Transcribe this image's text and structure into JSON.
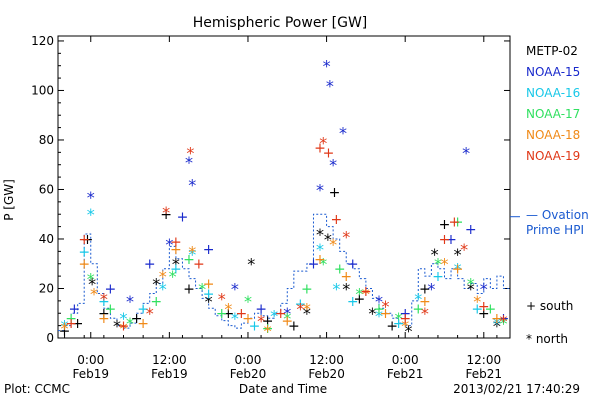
{
  "chart_data": {
    "type": "scatter",
    "title": "Hemispheric Power [GW]",
    "ylabel": "P [GW]",
    "xlabel": "Date and Time",
    "ylim": [
      0,
      122
    ],
    "yticks": [
      0,
      20,
      40,
      60,
      80,
      100,
      120
    ],
    "xlim_hours": [
      -5,
      64
    ],
    "xticks": [
      {
        "h": 0,
        "time": "0:00",
        "date": "Feb19"
      },
      {
        "h": 12,
        "time": "12:00",
        "date": "Feb19"
      },
      {
        "h": 24,
        "time": "0:00",
        "date": "Feb20"
      },
      {
        "h": 36,
        "time": "12:00",
        "date": "Feb20"
      },
      {
        "h": 48,
        "time": "0:00",
        "date": "Feb21"
      },
      {
        "h": 60,
        "time": "12:00",
        "date": "Feb21"
      }
    ],
    "footer_left": "Plot: CCMC",
    "footer_right": "2013/02/21 17:40:29",
    "markers_legend": {
      "south": "+ south",
      "north": "* north"
    },
    "series": [
      {
        "name": "METP-02",
        "color": "#000000",
        "points": [
          [
            -4,
            3,
            "+"
          ],
          [
            -2,
            6,
            "+"
          ],
          [
            -0.5,
            40,
            "+"
          ],
          [
            0.2,
            22,
            "*"
          ],
          [
            2,
            10,
            "+"
          ],
          [
            4,
            5,
            "*"
          ],
          [
            7,
            8,
            "+"
          ],
          [
            10,
            22,
            "*"
          ],
          [
            11.5,
            50,
            "+"
          ],
          [
            13,
            30,
            "*"
          ],
          [
            15,
            20,
            "+"
          ],
          [
            18,
            15,
            "*"
          ],
          [
            21,
            10,
            "+"
          ],
          [
            24.5,
            30,
            "*"
          ],
          [
            27,
            7,
            "+"
          ],
          [
            31,
            5,
            "+"
          ],
          [
            33,
            10,
            "*"
          ],
          [
            35,
            42,
            "*"
          ],
          [
            36.2,
            40,
            "*"
          ],
          [
            37.2,
            59,
            "+"
          ],
          [
            39,
            20,
            "*"
          ],
          [
            41,
            16,
            "+"
          ],
          [
            43,
            10,
            "*"
          ],
          [
            46,
            5,
            "+"
          ],
          [
            48.5,
            3,
            "*"
          ],
          [
            51,
            20,
            "+"
          ],
          [
            52.5,
            34,
            "*"
          ],
          [
            54,
            46,
            "+"
          ],
          [
            56,
            34,
            "*"
          ],
          [
            58,
            20,
            "*"
          ],
          [
            60,
            10,
            "+"
          ],
          [
            62,
            5,
            "*"
          ]
        ]
      },
      {
        "name": "NOAA-15",
        "color": "#1a2acc",
        "points": [
          [
            -2.5,
            12,
            "+"
          ],
          [
            0,
            57,
            "*"
          ],
          [
            3,
            20,
            "+"
          ],
          [
            6,
            15,
            "*"
          ],
          [
            9,
            30,
            "+"
          ],
          [
            12,
            38,
            "*"
          ],
          [
            14,
            49,
            "+"
          ],
          [
            15,
            71,
            "*"
          ],
          [
            15.5,
            62,
            "*"
          ],
          [
            18,
            36,
            "+"
          ],
          [
            22,
            20,
            "*"
          ],
          [
            26,
            12,
            "+"
          ],
          [
            30,
            10,
            "*"
          ],
          [
            34,
            30,
            "+"
          ],
          [
            35,
            60,
            "*"
          ],
          [
            36,
            110,
            "*"
          ],
          [
            36.5,
            102,
            "*"
          ],
          [
            37,
            70,
            "*"
          ],
          [
            38.5,
            83,
            "*"
          ],
          [
            40,
            30,
            "+"
          ],
          [
            44,
            15,
            "*"
          ],
          [
            48,
            10,
            "+"
          ],
          [
            52,
            20,
            "*"
          ],
          [
            55,
            40,
            "+"
          ],
          [
            57.3,
            75,
            "*"
          ],
          [
            58,
            44,
            "+"
          ],
          [
            60,
            20,
            "*"
          ],
          [
            63,
            8,
            "+"
          ]
        ]
      },
      {
        "name": "NOAA-16",
        "color": "#18c8e8",
        "points": [
          [
            -4,
            5,
            "*"
          ],
          [
            -1,
            35,
            "+"
          ],
          [
            0,
            50,
            "*"
          ],
          [
            2,
            15,
            "+"
          ],
          [
            5,
            8,
            "*"
          ],
          [
            8,
            12,
            "+"
          ],
          [
            11,
            20,
            "*"
          ],
          [
            13,
            28,
            "+"
          ],
          [
            15.5,
            34,
            "*"
          ],
          [
            18,
            18,
            "+"
          ],
          [
            22,
            8,
            "*"
          ],
          [
            25,
            5,
            "+"
          ],
          [
            28,
            9,
            "*"
          ],
          [
            32,
            14,
            "+"
          ],
          [
            35,
            36,
            "*"
          ],
          [
            37.5,
            20,
            "*"
          ],
          [
            40,
            15,
            "+"
          ],
          [
            44,
            9,
            "*"
          ],
          [
            47,
            6,
            "+"
          ],
          [
            50,
            16,
            "*"
          ],
          [
            53,
            25,
            "+"
          ],
          [
            56,
            28,
            "*"
          ],
          [
            59,
            12,
            "+"
          ],
          [
            62,
            6,
            "*"
          ]
        ]
      },
      {
        "name": "NOAA-17",
        "color": "#30e060",
        "points": [
          [
            -3,
            8,
            "+"
          ],
          [
            0,
            24,
            "*"
          ],
          [
            3,
            12,
            "+"
          ],
          [
            6,
            6,
            "*"
          ],
          [
            10,
            15,
            "+"
          ],
          [
            12.5,
            25,
            "*"
          ],
          [
            15,
            32,
            "+"
          ],
          [
            17,
            20,
            "*"
          ],
          [
            20,
            10,
            "+"
          ],
          [
            24,
            15,
            "*"
          ],
          [
            27,
            4,
            "+"
          ],
          [
            30,
            8,
            "*"
          ],
          [
            33,
            20,
            "+"
          ],
          [
            35.5,
            30,
            "*"
          ],
          [
            38,
            28,
            "+"
          ],
          [
            41,
            18,
            "*"
          ],
          [
            44,
            12,
            "+"
          ],
          [
            47,
            8,
            "*"
          ],
          [
            50,
            12,
            "+"
          ],
          [
            53,
            30,
            "*"
          ],
          [
            56,
            47,
            "+"
          ],
          [
            58,
            22,
            "*"
          ],
          [
            61,
            12,
            "+"
          ],
          [
            63,
            6,
            "*"
          ]
        ]
      },
      {
        "name": "NOAA-18",
        "color": "#f08a18",
        "points": [
          [
            -4,
            4,
            "*"
          ],
          [
            -1,
            30,
            "+"
          ],
          [
            0.5,
            18,
            "*"
          ],
          [
            2,
            8,
            "+"
          ],
          [
            5,
            4,
            "*"
          ],
          [
            8,
            6,
            "+"
          ],
          [
            11,
            25,
            "*"
          ],
          [
            13,
            36,
            "+"
          ],
          [
            15.5,
            35,
            "*"
          ],
          [
            18,
            22,
            "+"
          ],
          [
            21,
            12,
            "*"
          ],
          [
            24,
            8,
            "+"
          ],
          [
            27,
            3,
            "*"
          ],
          [
            30,
            7,
            "+"
          ],
          [
            33,
            12,
            "*"
          ],
          [
            35,
            32,
            "+"
          ],
          [
            37,
            38,
            "*"
          ],
          [
            39,
            25,
            "+"
          ],
          [
            42,
            18,
            "*"
          ],
          [
            45,
            10,
            "+"
          ],
          [
            48,
            5,
            "*"
          ],
          [
            51,
            15,
            "+"
          ],
          [
            54,
            30,
            "*"
          ],
          [
            56,
            28,
            "+"
          ],
          [
            59,
            15,
            "*"
          ],
          [
            62,
            8,
            "+"
          ]
        ]
      },
      {
        "name": "NOAA-19",
        "color": "#e03818",
        "points": [
          [
            -3,
            6,
            "+"
          ],
          [
            -1,
            40,
            "+"
          ],
          [
            2,
            16,
            "*"
          ],
          [
            5,
            5,
            "+"
          ],
          [
            9,
            10,
            "*"
          ],
          [
            11.5,
            51,
            "*"
          ],
          [
            13,
            39,
            "+"
          ],
          [
            15.2,
            75,
            "*"
          ],
          [
            16.5,
            30,
            "+"
          ],
          [
            20,
            16,
            "*"
          ],
          [
            23,
            10,
            "+"
          ],
          [
            26,
            7,
            "*"
          ],
          [
            29,
            10,
            "+"
          ],
          [
            32,
            12,
            "*"
          ],
          [
            35,
            77,
            "+"
          ],
          [
            35.5,
            79,
            "*"
          ],
          [
            36.3,
            75,
            "+"
          ],
          [
            37.5,
            48,
            "+"
          ],
          [
            39,
            41,
            "*"
          ],
          [
            42,
            19,
            "+"
          ],
          [
            45,
            13,
            "*"
          ],
          [
            48,
            8,
            "+"
          ],
          [
            51,
            10,
            "*"
          ],
          [
            54,
            40,
            "+"
          ],
          [
            55.5,
            47,
            "+"
          ],
          [
            57,
            36,
            "*"
          ],
          [
            60,
            13,
            "+"
          ],
          [
            63,
            7,
            "*"
          ]
        ]
      }
    ],
    "ovation": {
      "name": "— Ovation Prime HPI",
      "label_line1": "— Ovation",
      "label_line2": "Prime HPI",
      "color": "#1a5ad0",
      "steps": [
        [
          -5,
          3
        ],
        [
          -4,
          5
        ],
        [
          -3,
          10
        ],
        [
          -2,
          14
        ],
        [
          -1,
          42
        ],
        [
          0,
          30
        ],
        [
          1,
          18
        ],
        [
          2,
          12
        ],
        [
          3,
          8
        ],
        [
          4,
          5
        ],
        [
          5,
          4
        ],
        [
          6,
          6
        ],
        [
          7,
          10
        ],
        [
          8,
          14
        ],
        [
          9,
          18
        ],
        [
          10,
          22
        ],
        [
          11,
          28
        ],
        [
          12,
          37
        ],
        [
          13,
          32
        ],
        [
          14,
          28
        ],
        [
          15,
          24
        ],
        [
          16,
          20
        ],
        [
          17,
          16
        ],
        [
          18,
          12
        ],
        [
          19,
          9
        ],
        [
          20,
          7
        ],
        [
          21,
          5
        ],
        [
          22,
          4
        ],
        [
          23,
          6
        ],
        [
          24,
          8
        ],
        [
          25,
          10
        ],
        [
          26,
          9
        ],
        [
          27,
          8
        ],
        [
          28,
          10
        ],
        [
          29,
          14
        ],
        [
          30,
          20
        ],
        [
          31,
          27
        ],
        [
          32,
          27
        ],
        [
          33,
          30
        ],
        [
          34,
          50
        ],
        [
          35,
          50
        ],
        [
          36,
          45
        ],
        [
          37,
          40
        ],
        [
          38,
          35
        ],
        [
          39,
          30
        ],
        [
          40,
          28
        ],
        [
          41,
          24
        ],
        [
          42,
          20
        ],
        [
          43,
          16
        ],
        [
          44,
          12
        ],
        [
          45,
          10
        ],
        [
          46,
          8
        ],
        [
          47,
          6
        ],
        [
          48,
          5
        ],
        [
          49,
          15
        ],
        [
          50,
          28
        ],
        [
          51,
          25
        ],
        [
          52,
          30
        ],
        [
          53,
          28
        ],
        [
          54,
          24
        ],
        [
          55,
          28
        ],
        [
          56,
          24
        ],
        [
          57,
          20
        ],
        [
          58,
          22
        ],
        [
          59,
          18
        ],
        [
          60,
          24
        ],
        [
          61,
          20
        ],
        [
          62,
          25
        ],
        [
          63,
          20
        ],
        [
          64,
          20
        ]
      ]
    }
  }
}
